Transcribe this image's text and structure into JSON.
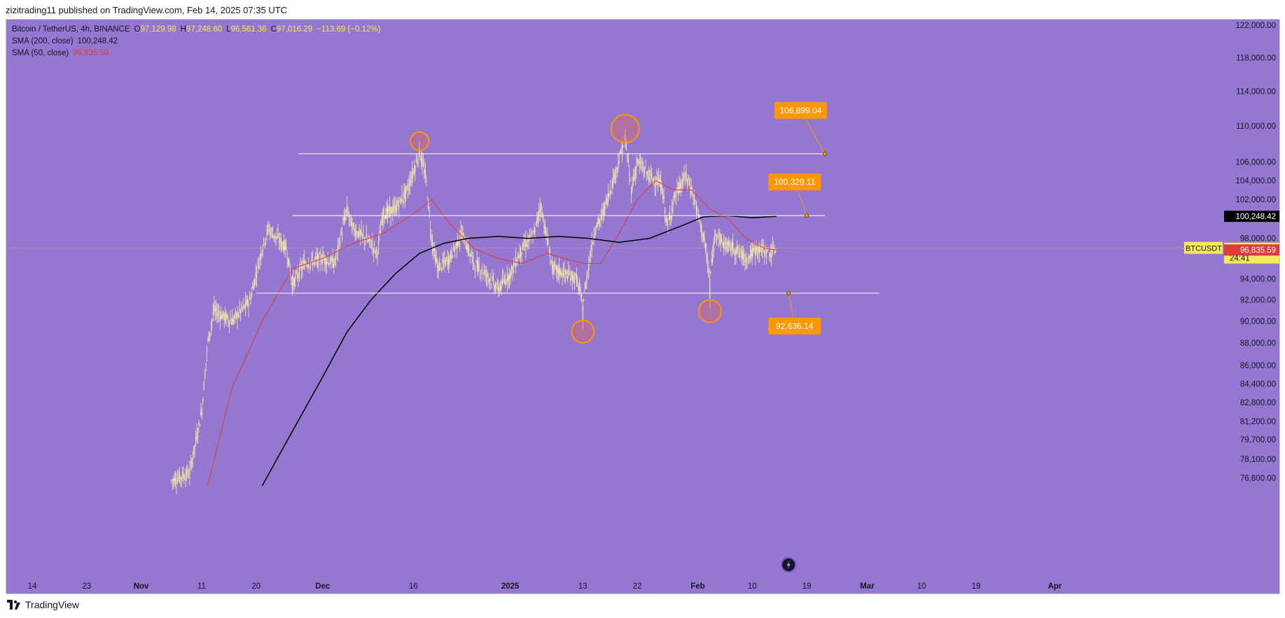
{
  "header": {
    "text": "zizitrading11 published on TradingView.com, Feb 14, 2025 07:35 UTC"
  },
  "legend": {
    "symbol": "Bitcoin / TetherUS, 4h, BINANCE",
    "open_label": "O",
    "open": "97,129.98",
    "high_label": "H",
    "high": "97,248.60",
    "low_label": "L",
    "low": "96,561.36",
    "close_label": "C",
    "close": "97,016.29",
    "change": "−113.69 (−0.12%)",
    "sma200_label": "SMA (200, close)",
    "sma200_value": "100,248.42",
    "sma50_label": "SMA (50, close)",
    "sma50_value": "96,835.59"
  },
  "footer": {
    "brand": "TradingView"
  },
  "colors": {
    "background": "#9477d0",
    "candles": "#f5e9a8",
    "sma50": "#e03a3e",
    "sma200": "#000000",
    "callout": "#ff9800",
    "levels": "#ffffff"
  },
  "chart_data": {
    "type": "line",
    "title": "Bitcoin / TetherUS, 4h, BINANCE",
    "ticker": "BTCUSDT",
    "y_scale": "log",
    "ylim": [
      75600,
      124000
    ],
    "y_ticks": [
      "122,000.00",
      "118,000.00",
      "114,000.00",
      "110,000.00",
      "106,000.00",
      "104,000.00",
      "102,000.00",
      "98,000.00",
      "94,000.00",
      "92,000.00",
      "90,000.00",
      "88,000.00",
      "86,000.00",
      "84,400.00",
      "82,800.00",
      "81,200.00",
      "79,700.00",
      "78,100.00",
      "76,600.00"
    ],
    "x_ticks": [
      "14",
      "23",
      "Nov",
      "11",
      "20",
      "Dec",
      "16",
      "2025",
      "13",
      "22",
      "Feb",
      "10",
      "19",
      "Mar",
      "10",
      "19",
      "Apr"
    ],
    "price_marker": {
      "symbol": "BTCUSDT",
      "price": "97,016.29",
      "countdown": "24:41"
    },
    "sma200_marker": "100,248.42",
    "sma50_marker": "96,835.59",
    "horizontal_levels": [
      {
        "price": 106899.04,
        "label": "106,899.04"
      },
      {
        "price": 100329.11,
        "label": "100,329.11"
      },
      {
        "price": 92636.14,
        "label": "92,636.14"
      }
    ],
    "price_path": [
      [
        "Nov 6",
        76400
      ],
      [
        "Nov 9",
        77000
      ],
      [
        "Nov 11",
        82000
      ],
      [
        "Nov 12",
        88000
      ],
      [
        "Nov 13",
        91000
      ],
      [
        "Nov 16",
        90000
      ],
      [
        "Nov 19",
        92000
      ],
      [
        "Nov 21",
        97000
      ],
      [
        "Nov 22",
        99000
      ],
      [
        "Nov 25",
        97000
      ],
      [
        "Nov 26",
        93500
      ],
      [
        "Nov 28",
        95500
      ],
      [
        "Dec 1",
        96000
      ],
      [
        "Dec 3",
        95500
      ],
      [
        "Dec 5",
        101000
      ],
      [
        "Dec 6",
        99000
      ],
      [
        "Dec 9",
        97500
      ],
      [
        "Dec 10",
        96500
      ],
      [
        "Dec 11",
        100500
      ],
      [
        "Dec 13",
        101000
      ],
      [
        "Dec 15",
        103000
      ],
      [
        "Dec 17",
        107000
      ],
      [
        "Dec 18",
        104500
      ],
      [
        "Dec 19",
        98000
      ],
      [
        "Dec 20",
        95000
      ],
      [
        "Dec 22",
        96000
      ],
      [
        "Dec 24",
        98500
      ],
      [
        "Dec 26",
        95500
      ],
      [
        "Dec 28",
        94500
      ],
      [
        "Dec 30",
        93000
      ],
      [
        "Jan 1",
        94500
      ],
      [
        "Jan 3",
        97000
      ],
      [
        "Jan 5",
        98500
      ],
      [
        "Jan 6",
        101500
      ],
      [
        "Jan 8",
        95000
      ],
      [
        "Jan 10",
        94500
      ],
      [
        "Jan 12",
        94000
      ],
      [
        "Jan 13",
        91500
      ],
      [
        "Jan 14",
        95500
      ],
      [
        "Jan 15",
        99000
      ],
      [
        "Jan 16",
        100000
      ],
      [
        "Jan 18",
        104000
      ],
      [
        "Jan 20",
        108500
      ],
      [
        "Jan 21",
        103000
      ],
      [
        "Jan 22",
        106000
      ],
      [
        "Jan 24",
        104500
      ],
      [
        "Jan 26",
        103500
      ],
      [
        "Jan 27",
        99000
      ],
      [
        "Jan 28",
        102000
      ],
      [
        "Jan 30",
        104500
      ],
      [
        "Jan 31",
        103000
      ],
      [
        "Feb 1",
        100500
      ],
      [
        "Feb 2",
        98000
      ],
      [
        "Feb 3",
        94000
      ],
      [
        "Feb 4",
        99000
      ],
      [
        "Feb 5",
        97500
      ],
      [
        "Feb 7",
        97000
      ],
      [
        "Feb 9",
        96000
      ],
      [
        "Feb 11",
        97000
      ],
      [
        "Feb 13",
        96500
      ],
      [
        "Feb 14",
        97016.29
      ]
    ],
    "series": [
      {
        "name": "SMA (50, close)",
        "points": [
          [
            "Nov 12",
            76000
          ],
          [
            "Nov 16",
            84000
          ],
          [
            "Nov 21",
            90000
          ],
          [
            "Nov 26",
            95000
          ],
          [
            "Dec 1",
            96000
          ],
          [
            "Dec 6",
            97500
          ],
          [
            "Dec 11",
            98500
          ],
          [
            "Dec 16",
            100500
          ],
          [
            "Dec 19",
            102000
          ],
          [
            "Dec 22",
            99500
          ],
          [
            "Dec 26",
            97000
          ],
          [
            "Dec 30",
            96000
          ],
          [
            "Jan 3",
            95500
          ],
          [
            "Jan 7",
            96500
          ],
          [
            "Jan 10",
            96000
          ],
          [
            "Jan 13",
            95500
          ],
          [
            "Jan 16",
            95500
          ],
          [
            "Jan 19",
            98500
          ],
          [
            "Jan 22",
            102000
          ],
          [
            "Jan 25",
            104000
          ],
          [
            "Jan 28",
            103000
          ],
          [
            "Jan 31",
            103000
          ],
          [
            "Feb 3",
            101000
          ],
          [
            "Feb 6",
            100000
          ],
          [
            "Feb 9",
            98000
          ],
          [
            "Feb 12",
            97000
          ],
          [
            "Feb 14",
            96835.59
          ]
        ]
      },
      {
        "name": "SMA (200, close)",
        "points": [
          [
            "Nov 21",
            76000
          ],
          [
            "Nov 25",
            79500
          ],
          [
            "Dec 1",
            85000
          ],
          [
            "Dec 5",
            89000
          ],
          [
            "Dec 9",
            92000
          ],
          [
            "Dec 13",
            94500
          ],
          [
            "Dec 17",
            96500
          ],
          [
            "Dec 21",
            97500
          ],
          [
            "Dec 25",
            98000
          ],
          [
            "Dec 30",
            98200
          ],
          [
            "Jan 4",
            98000
          ],
          [
            "Jan 9",
            98200
          ],
          [
            "Jan 14",
            98000
          ],
          [
            "Jan 19",
            97600
          ],
          [
            "Jan 24",
            98000
          ],
          [
            "Jan 29",
            99200
          ],
          [
            "Feb 2",
            100200
          ],
          [
            "Feb 6",
            100300
          ],
          [
            "Feb 10",
            100100
          ],
          [
            "Feb 14",
            100248.42
          ]
        ]
      }
    ],
    "highlighted_swings": [
      {
        "date": "Dec 17",
        "price": 108300
      },
      {
        "date": "Jan 20",
        "price": 109700
      },
      {
        "date": "Jan 13",
        "price": 89300
      },
      {
        "date": "Feb 3",
        "price": 91200
      }
    ]
  }
}
